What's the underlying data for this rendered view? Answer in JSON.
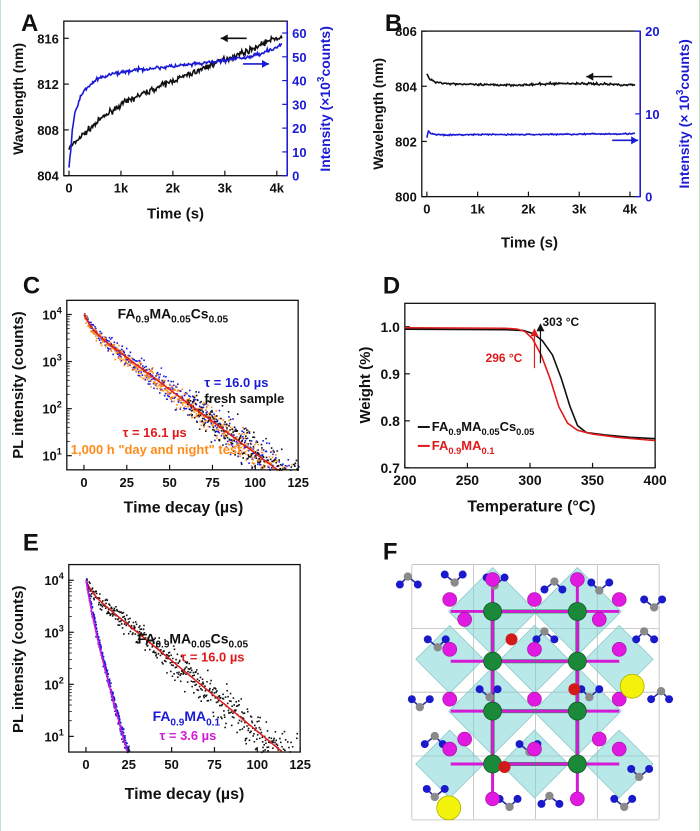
{
  "panels": [
    {
      "id": "A",
      "letter": "A",
      "type": "line",
      "xlabel": "Time (s)",
      "ylabel": "Wavelength (nm)",
      "y2label_pre": "Intensity (×10",
      "y2label_sup": "3",
      "y2label_post": "counts)",
      "xlim": [
        -100,
        4200
      ],
      "xticks": [
        0,
        1000,
        2000,
        3000,
        4000
      ],
      "xticklabels": [
        "0",
        "1k",
        "2k",
        "3k",
        "4k"
      ],
      "ylim": [
        804,
        817.5
      ],
      "yticks": [
        804,
        808,
        812,
        816
      ],
      "yticklabels": [
        "804",
        "808",
        "812",
        "816"
      ],
      "y2lim": [
        0,
        65
      ],
      "y2ticks": [
        0,
        10,
        20,
        30,
        40,
        50,
        60
      ],
      "y2ticklabels": [
        "0",
        "10",
        "20",
        "30",
        "40",
        "50",
        "60"
      ],
      "colors": {
        "left": "#111111",
        "right": "#1a1ad6"
      },
      "series": [
        {
          "axis": "left",
          "color": "#111111",
          "noise": 0.25,
          "x": [
            0,
            100,
            200,
            400,
            600,
            800,
            1000,
            1300,
            1600,
            2000,
            2400,
            2800,
            3200,
            3500,
            3800,
            4000,
            4100
          ],
          "y": [
            806.4,
            806.8,
            807.3,
            808.1,
            808.9,
            809.6,
            810.2,
            810.9,
            811.5,
            812.3,
            813.0,
            813.8,
            814.5,
            815.0,
            815.7,
            816.0,
            816.1
          ]
        },
        {
          "axis": "right",
          "color": "#1a1ad6",
          "noise": 0.8,
          "x": [
            0,
            20,
            60,
            120,
            200,
            300,
            400,
            500,
            600,
            800,
            1000,
            1500,
            2000,
            2500,
            3000,
            3500,
            4000,
            4100
          ],
          "y": [
            3,
            8,
            18,
            27,
            32,
            36,
            38,
            40,
            41,
            42.5,
            43.5,
            45,
            46,
            47,
            48.5,
            50,
            54,
            55
          ]
        }
      ],
      "arrows": [
        {
          "axis": "left",
          "x": 3420,
          "y": 816.0,
          "dir": "left",
          "color": "#111111"
        },
        {
          "axis": "right",
          "x": 3350,
          "y": 47,
          "dir": "right",
          "color": "#1a1ad6"
        }
      ]
    },
    {
      "id": "B",
      "letter": "B",
      "type": "line",
      "xlabel": "Time (s)",
      "ylabel": "Wavelength (nm)",
      "y2label_pre": "Intensity (× 10",
      "y2label_sup": "3",
      "y2label_post": "counts)",
      "xlim": [
        -100,
        4200
      ],
      "xticks": [
        0,
        1000,
        2000,
        3000,
        4000
      ],
      "xticklabels": [
        "0",
        "1k",
        "2k",
        "3k",
        "4k"
      ],
      "ylim": [
        800,
        806
      ],
      "yticks": [
        800,
        802,
        804,
        806
      ],
      "yticklabels": [
        "800",
        "802",
        "804",
        "806"
      ],
      "y2lim": [
        0,
        20
      ],
      "y2ticks": [
        0,
        10,
        20
      ],
      "y2ticklabels": [
        "0",
        "10",
        "20"
      ],
      "colors": {
        "left": "#111111",
        "right": "#1a1ad6"
      },
      "series": [
        {
          "axis": "left",
          "color": "#111111",
          "noise": 0.04,
          "x": [
            0,
            40,
            100,
            200,
            400,
            700,
            1000,
            1500,
            2000,
            2500,
            3000,
            3500,
            4000,
            4100
          ],
          "y": [
            804.45,
            804.3,
            804.2,
            804.15,
            804.1,
            804.08,
            804.05,
            804.05,
            804.05,
            804.1,
            804.1,
            804.08,
            804.05,
            804.05
          ]
        },
        {
          "axis": "right",
          "color": "#1a1ad6",
          "noise": 0.08,
          "x": [
            0,
            30,
            80,
            200,
            500,
            1000,
            2000,
            3000,
            4000,
            4100
          ],
          "y": [
            7.1,
            8.0,
            7.6,
            7.5,
            7.45,
            7.5,
            7.5,
            7.55,
            7.6,
            7.6
          ]
        }
      ],
      "arrows": [
        {
          "axis": "left",
          "x": 3650,
          "y": 804.35,
          "dir": "left",
          "color": "#111111"
        },
        {
          "axis": "right",
          "x": 3650,
          "y": 6.8,
          "dir": "right",
          "color": "#1a1ad6"
        }
      ]
    },
    {
      "id": "C",
      "letter": "C",
      "type": "scatter",
      "xlabel": "Time decay (µs)",
      "ylabel": "PL intensity (counts)",
      "xlim": [
        -10,
        125
      ],
      "xticks": [
        0,
        25,
        50,
        75,
        100,
        125
      ],
      "xticklabels": [
        "0",
        "25",
        "50",
        "75",
        "100",
        "125"
      ],
      "ylim": [
        5,
        20000
      ],
      "log": true,
      "yticks": [
        10,
        100,
        1000,
        10000
      ],
      "yticklabels_exp": [
        "1",
        "2",
        "3",
        "4"
      ],
      "series": [
        {
          "name": "fresh sample",
          "color": "#1a1ad6",
          "A1": 4200,
          "t1": 3.0,
          "A2": 5800,
          "t2": 16.0,
          "x0": 0,
          "x1": 125,
          "scatter": 0.12
        },
        {
          "name": "1,000 h \"day and night\" test",
          "color": "#ff8c1a",
          "A1": 4200,
          "t1": 3.0,
          "A2": 5800,
          "t2": 16.1,
          "x0": 0,
          "x1": 125,
          "scatter": 0.1,
          "jitter": 0.93
        },
        {
          "name": "noise",
          "color": "#111111",
          "A1": 4200,
          "t1": 3.0,
          "A2": 5800,
          "t2": 16.0,
          "x0": 60,
          "x1": 125,
          "scatter": 0.14,
          "sparse": true
        },
        {
          "name": "fit",
          "color": "#e01a1a",
          "A1": 4200,
          "t1": 3.0,
          "A2": 5800,
          "t2": 16.0,
          "x0": 0,
          "x1": 125,
          "fit": true
        }
      ],
      "labels": {
        "title_parts": [
          [
            "FA",
            ""
          ],
          [
            "0.9",
            "sub"
          ],
          [
            "MA",
            ""
          ],
          [
            "0.05",
            "sub"
          ],
          [
            "Cs",
            ""
          ],
          [
            "0.05",
            "sub"
          ]
        ],
        "tau1": "τ = 16.0 µs",
        "fresh": "fresh sample",
        "tau2": "τ = 16.1 µs",
        "test": "1,000 h \"day and night\" test"
      }
    },
    {
      "id": "D",
      "letter": "D",
      "type": "line",
      "xlabel": "Temperature (°C)",
      "ylabel": "Weight (%)",
      "xlim": [
        200,
        400
      ],
      "xticks": [
        200,
        250,
        300,
        350,
        400
      ],
      "xticklabels": [
        "200",
        "250",
        "300",
        "350",
        "400"
      ],
      "ylim": [
        0.7,
        1.05
      ],
      "yticks": [
        0.7,
        0.8,
        0.9,
        1.0
      ],
      "yticklabels": [
        "0.7",
        "0.8",
        "0.9",
        "1.0"
      ],
      "series": [
        {
          "name": "FA0.9MA0.05Cs0.05",
          "color": "#111111",
          "x": [
            200,
            280,
            295,
            303,
            310,
            318,
            325,
            332,
            338,
            345,
            360,
            380,
            400
          ],
          "y": [
            0.995,
            0.994,
            0.992,
            0.985,
            0.97,
            0.94,
            0.89,
            0.83,
            0.79,
            0.775,
            0.77,
            0.765,
            0.762
          ]
        },
        {
          "name": "FA0.9MA0.1",
          "color": "#e01a1a",
          "x": [
            200,
            280,
            290,
            296,
            302,
            309,
            316,
            323,
            330,
            338,
            350,
            370,
            400
          ],
          "y": [
            0.998,
            0.997,
            0.995,
            0.99,
            0.975,
            0.94,
            0.89,
            0.83,
            0.795,
            0.78,
            0.772,
            0.765,
            0.758
          ]
        }
      ],
      "labels": {
        "t303": "303 °C",
        "t296": "296 °C",
        "legend1_parts": [
          [
            "FA",
            ""
          ],
          [
            "0.9",
            "sub"
          ],
          [
            "MA",
            ""
          ],
          [
            "0.05",
            "sub"
          ],
          [
            "Cs",
            ""
          ],
          [
            "0.05",
            "sub"
          ]
        ],
        "legend2_parts": [
          [
            "FA",
            ""
          ],
          [
            "0.9",
            "sub"
          ],
          [
            "MA",
            ""
          ],
          [
            "0.1",
            "sub"
          ]
        ]
      }
    },
    {
      "id": "E",
      "letter": "E",
      "type": "scatter",
      "xlabel": "Time decay (µs)",
      "ylabel": "PL intensity (counts)",
      "xlim": [
        -10,
        125
      ],
      "xticks": [
        0,
        25,
        50,
        75,
        100,
        125
      ],
      "xticklabels": [
        "0",
        "25",
        "50",
        "75",
        "100",
        "125"
      ],
      "ylim": [
        5,
        20000
      ],
      "log": true,
      "yticks": [
        10,
        100,
        1000,
        10000
      ],
      "yticklabels_exp": [
        "1",
        "2",
        "3",
        "4"
      ],
      "series": [
        {
          "name": "FA0.9MA0.05Cs0.05",
          "color": "#111111",
          "A1": 3500,
          "t1": 2.5,
          "A2": 6500,
          "t2": 16.0,
          "x0": 0,
          "x1": 125,
          "scatter": 0.12
        },
        {
          "name": "fitA",
          "color": "#e01a1a",
          "A1": 3500,
          "t1": 2.5,
          "A2": 6500,
          "t2": 16.0,
          "x0": 0,
          "x1": 125,
          "fit": true
        },
        {
          "name": "FA0.9MA0.1",
          "color": "#1a1ad6",
          "A1": 6000,
          "t1": 1.8,
          "A2": 4000,
          "t2": 3.6,
          "x0": 0,
          "x1": 36,
          "scatter": 0.1
        },
        {
          "name": "fitB",
          "color": "#d41ad4",
          "A1": 6000,
          "t1": 1.8,
          "A2": 4000,
          "t2": 3.6,
          "x0": 0,
          "x1": 36,
          "fit": true
        }
      ],
      "labels": {
        "title_parts": [
          [
            "FA",
            ""
          ],
          [
            "0.9",
            "sub"
          ],
          [
            "MA",
            ""
          ],
          [
            "0.05",
            "sub"
          ],
          [
            "Cs",
            ""
          ],
          [
            "0.05",
            "sub"
          ]
        ],
        "tau1": "τ = 16.0 µs",
        "title2_parts": [
          [
            "FA",
            ""
          ],
          [
            "0.9",
            "sub"
          ],
          [
            "MA",
            ""
          ],
          [
            "0.1",
            "sub"
          ]
        ],
        "tau2": "τ = 3.6 µs"
      }
    },
    {
      "id": "F",
      "letter": "F",
      "type": "diagram"
    }
  ]
}
